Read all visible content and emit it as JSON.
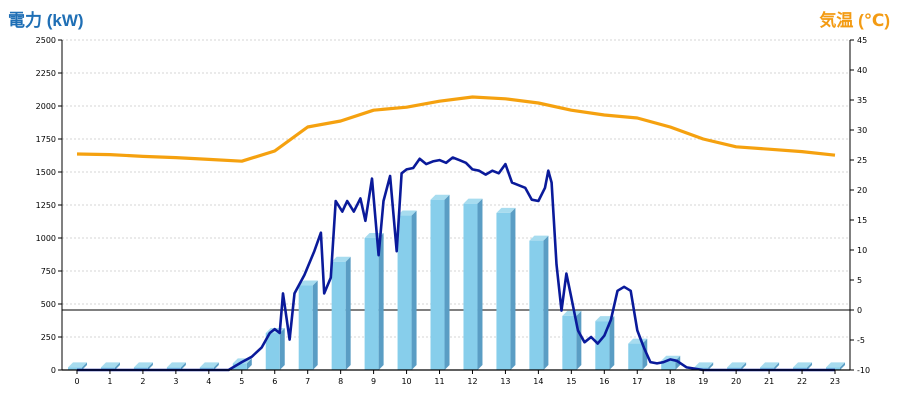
{
  "header": {
    "left_title": "電力 (kW)",
    "right_title": "気温 (℃)"
  },
  "colors": {
    "bar_face": "#87ceeb",
    "bar_side": "#5a9dc4",
    "bar_top": "#a7dcef",
    "power_line": "#0a1a9a",
    "temperature_line": "#f5a10f",
    "left_title": "#1f6fb5",
    "right_title": "#f39b13",
    "grid": "#c8c8c8"
  },
  "chart_data": {
    "type": "bar",
    "categories": [
      "0",
      "1",
      "2",
      "3",
      "4",
      "5",
      "6",
      "7",
      "8",
      "9",
      "10",
      "11",
      "12",
      "13",
      "14",
      "15",
      "16",
      "17",
      "18",
      "19",
      "20",
      "21",
      "22",
      "23"
    ],
    "x_ticks": [
      "0",
      "1",
      "2",
      "3",
      "4",
      "5",
      "6",
      "7",
      "8",
      "9",
      "10",
      "11",
      "12",
      "13",
      "14",
      "15",
      "16",
      "17",
      "18",
      "19",
      "20",
      "21",
      "22",
      "23"
    ],
    "left_axis": {
      "label": "電力 (kW)",
      "ylim": [
        0,
        2500
      ],
      "ticks": [
        "0",
        "250",
        "500",
        "750",
        "1000",
        "1250",
        "1500",
        "1750",
        "2000",
        "2250",
        "2500"
      ]
    },
    "right_axis": {
      "label": "気温 (℃)",
      "ylim": [
        -10,
        45
      ],
      "ticks": [
        "-10",
        "-5",
        "0",
        "5",
        "10",
        "15",
        "20",
        "25",
        "30",
        "35",
        "40",
        "45"
      ]
    },
    "grid": true,
    "series": [
      {
        "kind": "bar",
        "axis": "left",
        "values": [
          20,
          20,
          20,
          20,
          20,
          50,
          280,
          640,
          820,
          1000,
          1170,
          1290,
          1260,
          1190,
          980,
          410,
          370,
          200,
          70,
          20,
          20,
          20,
          20,
          20
        ]
      },
      {
        "kind": "line",
        "axis": "left",
        "points": [
          [
            0,
            0
          ],
          [
            1,
            0
          ],
          [
            2,
            0
          ],
          [
            3,
            0
          ],
          [
            4,
            0
          ],
          [
            4.6,
            0
          ],
          [
            5,
            60
          ],
          [
            5.3,
            100
          ],
          [
            5.6,
            170
          ],
          [
            5.85,
            280
          ],
          [
            6,
            310
          ],
          [
            6.15,
            280
          ],
          [
            6.25,
            580
          ],
          [
            6.45,
            230
          ],
          [
            6.6,
            580
          ],
          [
            6.9,
            720
          ],
          [
            7.2,
            900
          ],
          [
            7.4,
            1040
          ],
          [
            7.5,
            580
          ],
          [
            7.7,
            700
          ],
          [
            7.85,
            1280
          ],
          [
            8.05,
            1200
          ],
          [
            8.2,
            1280
          ],
          [
            8.4,
            1200
          ],
          [
            8.6,
            1300
          ],
          [
            8.75,
            1130
          ],
          [
            8.95,
            1450
          ],
          [
            9.15,
            870
          ],
          [
            9.3,
            1280
          ],
          [
            9.5,
            1470
          ],
          [
            9.7,
            900
          ],
          [
            9.85,
            1490
          ],
          [
            10.0,
            1520
          ],
          [
            10.2,
            1530
          ],
          [
            10.4,
            1600
          ],
          [
            10.6,
            1560
          ],
          [
            10.8,
            1580
          ],
          [
            11.0,
            1590
          ],
          [
            11.2,
            1570
          ],
          [
            11.4,
            1610
          ],
          [
            11.6,
            1590
          ],
          [
            11.8,
            1570
          ],
          [
            12.0,
            1520
          ],
          [
            12.2,
            1510
          ],
          [
            12.4,
            1480
          ],
          [
            12.6,
            1510
          ],
          [
            12.8,
            1490
          ],
          [
            13.0,
            1560
          ],
          [
            13.2,
            1420
          ],
          [
            13.4,
            1400
          ],
          [
            13.6,
            1380
          ],
          [
            13.8,
            1290
          ],
          [
            14.0,
            1280
          ],
          [
            14.2,
            1380
          ],
          [
            14.3,
            1510
          ],
          [
            14.4,
            1420
          ],
          [
            14.55,
            800
          ],
          [
            14.7,
            450
          ],
          [
            14.85,
            730
          ],
          [
            15.0,
            550
          ],
          [
            15.2,
            300
          ],
          [
            15.4,
            210
          ],
          [
            15.6,
            250
          ],
          [
            15.8,
            200
          ],
          [
            16.0,
            260
          ],
          [
            16.2,
            380
          ],
          [
            16.4,
            600
          ],
          [
            16.6,
            630
          ],
          [
            16.8,
            600
          ],
          [
            17.0,
            300
          ],
          [
            17.2,
            170
          ],
          [
            17.4,
            60
          ],
          [
            17.6,
            50
          ],
          [
            17.8,
            60
          ],
          [
            18.0,
            80
          ],
          [
            18.2,
            70
          ],
          [
            18.5,
            20
          ],
          [
            19,
            0
          ],
          [
            20,
            0
          ],
          [
            21,
            0
          ],
          [
            22,
            0
          ],
          [
            23,
            0
          ]
        ]
      },
      {
        "kind": "line",
        "axis": "right",
        "points": [
          [
            0,
            26.0
          ],
          [
            1,
            25.9
          ],
          [
            2,
            25.6
          ],
          [
            3,
            25.4
          ],
          [
            4,
            25.1
          ],
          [
            5,
            24.8
          ],
          [
            6,
            26.5
          ],
          [
            7,
            30.5
          ],
          [
            8,
            31.5
          ],
          [
            9,
            33.3
          ],
          [
            10,
            33.8
          ],
          [
            11,
            34.8
          ],
          [
            12,
            35.5
          ],
          [
            13,
            35.2
          ],
          [
            14,
            34.5
          ],
          [
            15,
            33.3
          ],
          [
            16,
            32.5
          ],
          [
            17,
            32.0
          ],
          [
            18,
            30.5
          ],
          [
            19,
            28.5
          ],
          [
            20,
            27.2
          ],
          [
            21,
            26.8
          ],
          [
            22,
            26.4
          ],
          [
            23,
            25.8
          ]
        ]
      }
    ]
  }
}
